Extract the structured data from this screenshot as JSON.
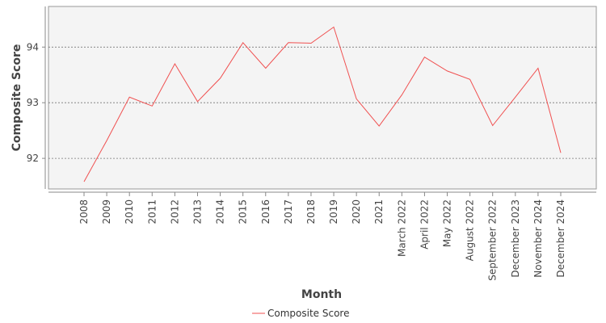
{
  "chart_data": {
    "type": "line",
    "categories": [
      "2008",
      "2009",
      "2010",
      "2011",
      "2012",
      "2013",
      "2014",
      "2015",
      "2016",
      "2017",
      "2018",
      "2019",
      "2020",
      "2021",
      "March 2022",
      "April 2022",
      "May 2022",
      "August 2022",
      "September 2022",
      "December 2023",
      "November 2024",
      "December 2024"
    ],
    "series": [
      {
        "name": "Composite Score",
        "color": "#f05050",
        "values": [
          91.58,
          92.32,
          93.1,
          92.94,
          93.7,
          93.02,
          93.44,
          94.08,
          93.62,
          94.08,
          94.07,
          94.36,
          93.07,
          92.58,
          93.14,
          93.82,
          93.57,
          93.42,
          92.59,
          93.1,
          93.62,
          92.1
        ]
      }
    ],
    "xlabel": "Month",
    "ylabel": "Composite Score",
    "yticks": [
      "92",
      "93",
      "94"
    ],
    "ylim": [
      91.45,
      94.73
    ],
    "grid": true,
    "legend": "bottom-center"
  }
}
